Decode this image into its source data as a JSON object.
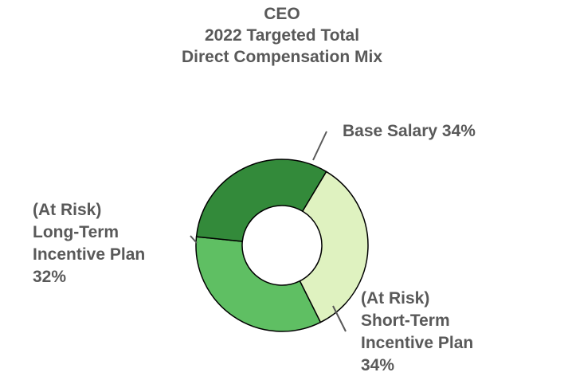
{
  "chart_data": {
    "type": "pie",
    "donut": true,
    "title_lines": [
      "CEO",
      "2022 Targeted Total",
      "Direct Compensation Mix"
    ],
    "slices": [
      {
        "label_lines": [
          "Base Salary 34%"
        ],
        "value": 34,
        "color": "#dff2c0"
      },
      {
        "label_lines": [
          "(At Risk)",
          "Short-Term",
          "Incentive Plan",
          "34%"
        ],
        "value": 34,
        "color": "#5fbf63"
      },
      {
        "label_lines": [
          "(At Risk)",
          "Long-Term",
          "Incentive Plan",
          "32%"
        ],
        "value": 32,
        "color": "#338a3a"
      }
    ],
    "start_angle_deg": -59,
    "legend": "none",
    "colors": {
      "stroke": "#000000",
      "leader": "#595959",
      "text": "#595959"
    }
  }
}
